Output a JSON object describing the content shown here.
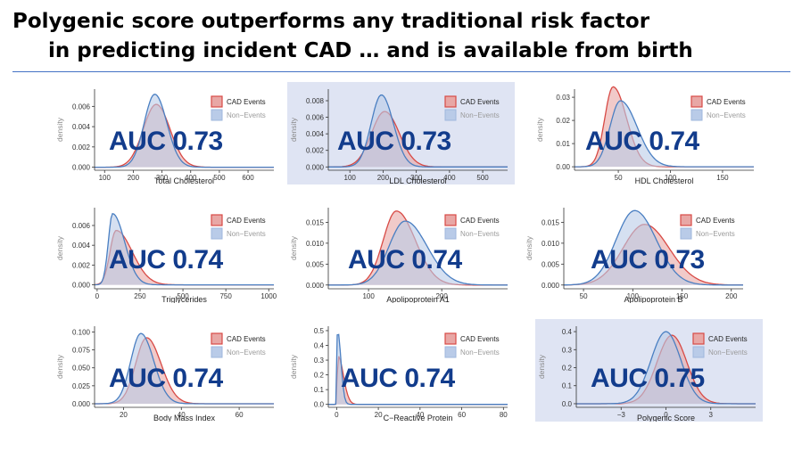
{
  "slide": {
    "title_line1": "Polygenic score outperforms any traditional risk factor",
    "title_line2": "in predicting incident CAD … and is available from birth"
  },
  "colors": {
    "cad_fill": "#e8a7a5",
    "cad_line": "#d84a45",
    "non_fill": "#b9cbe8",
    "non_line": "#4a7fc2",
    "auc_text": "#123c8c",
    "rule": "#4472c4",
    "highlight_bg": "#dfe4f3"
  },
  "legend": {
    "cad": "CAD Events",
    "non": "Non−Events"
  },
  "chart_data": [
    {
      "type": "area",
      "id": "total-cholesterol",
      "xlabel": "Total Cholesterol",
      "ylabel": "density",
      "auc": "AUC 0.73",
      "xlim": [
        65,
        690
      ],
      "ylim": [
        -0.0003,
        0.0077
      ],
      "xticks": [
        100,
        200,
        300,
        400,
        500,
        600
      ],
      "yticks": [
        0.0,
        0.002,
        0.004,
        0.006
      ],
      "ytick_labels": [
        "0.000",
        "0.002",
        "0.004",
        "0.006"
      ],
      "series": [
        {
          "name": "CAD Events",
          "peak_x": 280,
          "peak_y": 0.0062,
          "sd_left": 45,
          "sd_right": 48
        },
        {
          "name": "Non−Events",
          "peak_x": 275,
          "peak_y": 0.0072,
          "sd_left": 37,
          "sd_right": 42
        }
      ]
    },
    {
      "type": "area",
      "id": "ldl-cholesterol",
      "xlabel": "LDL Cholesterol",
      "ylabel": "density",
      "auc": "AUC 0.73",
      "highlight": true,
      "xlim": [
        35,
        575
      ],
      "ylim": [
        -0.0004,
        0.0094
      ],
      "xticks": [
        100,
        200,
        300,
        400,
        500
      ],
      "yticks": [
        0.0,
        0.002,
        0.004,
        0.006,
        0.008
      ],
      "ytick_labels": [
        "0.000",
        "0.002",
        "0.004",
        "0.006",
        "0.008"
      ],
      "series": [
        {
          "name": "CAD Events",
          "peak_x": 205,
          "peak_y": 0.0067,
          "sd_left": 40,
          "sd_right": 44
        },
        {
          "name": "Non−Events",
          "peak_x": 195,
          "peak_y": 0.0087,
          "sd_left": 31,
          "sd_right": 36
        }
      ]
    },
    {
      "type": "area",
      "id": "hdl-cholesterol",
      "xlabel": "HDL Cholesterol",
      "ylabel": "density",
      "auc": "AUC 0.74",
      "xlim": [
        8,
        180
      ],
      "ylim": [
        -0.0015,
        0.0335
      ],
      "xticks": [
        50,
        100,
        150
      ],
      "yticks": [
        0.0,
        0.01,
        0.02,
        0.03
      ],
      "ytick_labels": [
        "0.00",
        "0.01",
        "0.02",
        "0.03"
      ],
      "series": [
        {
          "name": "CAD Events",
          "peak_x": 45,
          "peak_y": 0.0345,
          "sd_left": 8,
          "sd_right": 13
        },
        {
          "name": "Non−Events",
          "peak_x": 52,
          "peak_y": 0.0285,
          "sd_left": 10,
          "sd_right": 16
        }
      ]
    },
    {
      "type": "area",
      "id": "triglycerides",
      "xlabel": "Triglycerides",
      "ylabel": "density",
      "auc": "AUC 0.74",
      "xlim": [
        -15,
        1030
      ],
      "ylim": [
        -0.0004,
        0.0078
      ],
      "xticks": [
        0,
        250,
        500,
        750,
        1000
      ],
      "yticks": [
        0.0,
        0.002,
        0.004,
        0.006
      ],
      "ytick_labels": [
        "0.000",
        "0.002",
        "0.004",
        "0.006"
      ],
      "series": [
        {
          "name": "CAD Events",
          "peak_x": 110,
          "peak_y": 0.0055,
          "sd_left": 35,
          "sd_right": 95
        },
        {
          "name": "Non−Events",
          "peak_x": 90,
          "peak_y": 0.0072,
          "sd_left": 25,
          "sd_right": 70
        }
      ]
    },
    {
      "type": "area",
      "id": "apolipoprotein-a1",
      "xlabel": "Apolipoprotein A1",
      "ylabel": "density",
      "auc": "AUC 0.74",
      "xlim": [
        45,
        290
      ],
      "ylim": [
        -0.0009,
        0.0185
      ],
      "xticks": [
        100,
        200
      ],
      "yticks": [
        0.0,
        0.005,
        0.01,
        0.015
      ],
      "ytick_labels": [
        "0.000",
        "0.005",
        "0.010",
        "0.015"
      ],
      "series": [
        {
          "name": "CAD Events",
          "peak_x": 138,
          "peak_y": 0.0177,
          "sd_left": 18,
          "sd_right": 26
        },
        {
          "name": "Non−Events",
          "peak_x": 150,
          "peak_y": 0.0153,
          "sd_left": 22,
          "sd_right": 30
        }
      ]
    },
    {
      "type": "area",
      "id": "apolipoprotein-b",
      "xlabel": "Apolipoprotein B",
      "ylabel": "density",
      "auc": "AUC 0.73",
      "xlim": [
        30,
        212
      ],
      "ylim": [
        -0.0009,
        0.0185
      ],
      "xticks": [
        50,
        100,
        150,
        200
      ],
      "yticks": [
        0.0,
        0.005,
        0.01,
        0.015
      ],
      "ytick_labels": [
        "0.000",
        "0.005",
        "0.010",
        "0.015"
      ],
      "series": [
        {
          "name": "CAD Events",
          "peak_x": 112,
          "peak_y": 0.0145,
          "sd_left": 22,
          "sd_right": 25
        },
        {
          "name": "Non−Events",
          "peak_x": 102,
          "peak_y": 0.0178,
          "sd_left": 19,
          "sd_right": 22
        }
      ]
    },
    {
      "type": "area",
      "id": "body-mass-index",
      "xlabel": "Body Mass Index",
      "ylabel": "density",
      "auc": "AUC 0.74",
      "xlim": [
        10,
        72
      ],
      "ylim": [
        -0.005,
        0.108
      ],
      "xticks": [
        20,
        40,
        60
      ],
      "yticks": [
        0.0,
        0.025,
        0.05,
        0.075,
        0.1
      ],
      "ytick_labels": [
        "0.000",
        "0.025",
        "0.050",
        "0.075",
        "0.100"
      ],
      "series": [
        {
          "name": "CAD Events",
          "peak_x": 28,
          "peak_y": 0.092,
          "sd_left": 3.8,
          "sd_right": 5
        },
        {
          "name": "Non−Events",
          "peak_x": 26,
          "peak_y": 0.098,
          "sd_left": 3.5,
          "sd_right": 4.5
        }
      ]
    },
    {
      "type": "area",
      "id": "c-reactive-protein",
      "xlabel": "C−Reactive Protein",
      "ylabel": "density",
      "auc": "AUC 0.74",
      "xlim": [
        -4,
        82
      ],
      "ylim": [
        -0.02,
        0.53
      ],
      "xticks": [
        0,
        20,
        40,
        60,
        80
      ],
      "yticks": [
        0.0,
        0.1,
        0.2,
        0.3,
        0.4,
        0.5
      ],
      "ytick_labels": [
        "0.0",
        "0.1",
        "0.2",
        "0.3",
        "0.4",
        "0.5"
      ],
      "series": [
        {
          "name": "CAD Events",
          "peak_x": 0.6,
          "peak_y": 0.33,
          "sd_left": 0.3,
          "sd_right": 2.6
        },
        {
          "name": "Non−Events",
          "peak_x": 0.4,
          "peak_y": 0.51,
          "sd_left": 0.25,
          "sd_right": 1.6
        }
      ]
    },
    {
      "type": "area",
      "id": "polygenic-score",
      "xlabel": "Polygenic Score",
      "ylabel": "density",
      "auc": "AUC 0.75",
      "highlight": true,
      "xlim": [
        -6,
        6
      ],
      "ylim": [
        -0.02,
        0.43
      ],
      "xticks": [
        -3,
        0,
        3
      ],
      "xtick_labels": [
        "−3",
        "0",
        "3"
      ],
      "yticks": [
        0.0,
        0.1,
        0.2,
        0.3,
        0.4
      ],
      "ytick_labels": [
        "0.0",
        "0.1",
        "0.2",
        "0.3",
        "0.4"
      ],
      "series": [
        {
          "name": "CAD Events",
          "peak_x": 0.4,
          "peak_y": 0.38,
          "sd_left": 1.0,
          "sd_right": 1.0
        },
        {
          "name": "Non−Events",
          "peak_x": 0.0,
          "peak_y": 0.4,
          "sd_left": 1.0,
          "sd_right": 1.0
        }
      ]
    }
  ]
}
